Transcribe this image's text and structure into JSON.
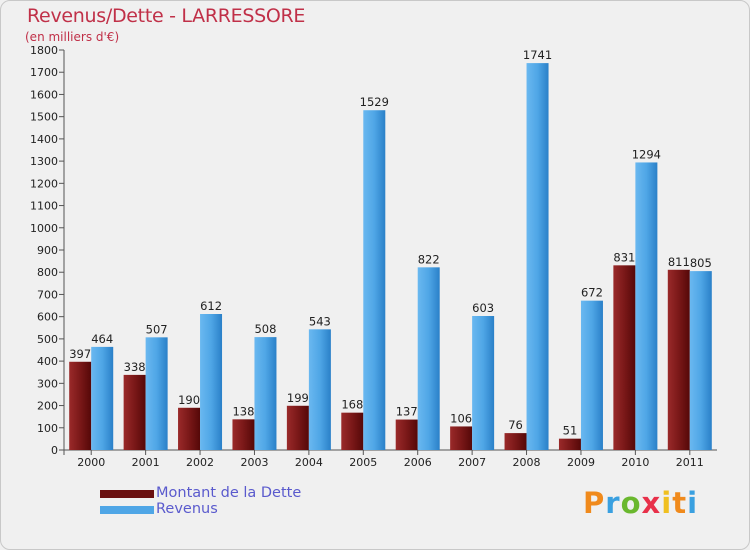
{
  "header": {
    "title": "Revenus/Dette - LARRESSORE",
    "subtitle": "(en milliers d'€)"
  },
  "legend": {
    "items": [
      {
        "label": "Montant de la Dette",
        "color": "#7a1818"
      },
      {
        "label": "Revenus",
        "color": "#4fa6e6"
      }
    ]
  },
  "logo": {
    "letters": [
      "P",
      "r",
      "o",
      "x",
      "i",
      "t",
      "i"
    ],
    "colors": [
      "#f08a1c",
      "#3aa0e0",
      "#6ab82e",
      "#e8304a",
      "#f0c020",
      "#f08a1c",
      "#3aa0e0"
    ]
  },
  "chart_data": {
    "type": "bar",
    "title": "Revenus/Dette - LARRESSORE",
    "subtitle": "(en milliers d'€)",
    "categories": [
      "2000",
      "2001",
      "2002",
      "2003",
      "2004",
      "2005",
      "2006",
      "2007",
      "2008",
      "2009",
      "2010",
      "2011"
    ],
    "series": [
      {
        "name": "Montant de la Dette",
        "color": "#7a1818",
        "values": [
          397,
          338,
          190,
          138,
          199,
          168,
          137,
          106,
          76,
          51,
          831,
          811
        ]
      },
      {
        "name": "Revenus",
        "color": "#4fa6e6",
        "values": [
          464,
          507,
          612,
          508,
          543,
          1529,
          822,
          603,
          1741,
          672,
          1294,
          805
        ]
      }
    ],
    "ylim": [
      0,
      1800
    ],
    "yticks": [
      0,
      100,
      200,
      300,
      400,
      500,
      600,
      700,
      800,
      900,
      1000,
      1100,
      1200,
      1300,
      1400,
      1500,
      1600,
      1700,
      1800
    ],
    "grid": false,
    "legend_position": "bottom-left"
  }
}
